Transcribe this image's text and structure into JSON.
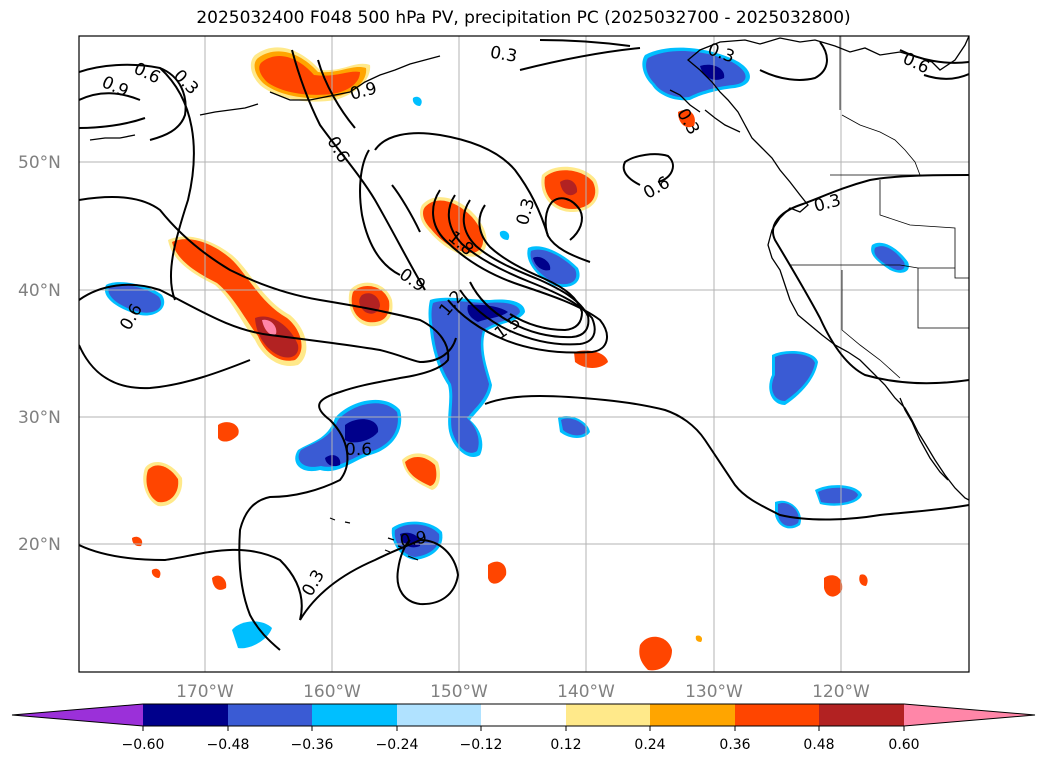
{
  "title": "2025032400 F048 500 hPa PV, precipitation PC (2025032700 - 2025032800)",
  "map": {
    "lat_labels": [
      "50°N",
      "40°N",
      "30°N",
      "20°N"
    ],
    "lon_labels": [
      "170°W",
      "160°W",
      "150°W",
      "140°W",
      "130°W",
      "120°W"
    ],
    "contour_labels": [
      "0.9",
      "0.6",
      "0.3",
      "0.3",
      "0.9",
      "0.6",
      "0.3",
      "0.6",
      "0.3",
      "0.6",
      "0.3",
      "0.6",
      "0.9",
      "1.2",
      "1.5",
      "1.8",
      "0.3",
      "0.9",
      "0.3",
      "0.6"
    ]
  },
  "colorbar": {
    "ticks": [
      "−0.60",
      "−0.48",
      "−0.36",
      "−0.24",
      "−0.12",
      "0.12",
      "0.24",
      "0.36",
      "0.48",
      "0.60"
    ],
    "colors": [
      "#9b30d9",
      "#00008b",
      "#3a5bd4",
      "#00bfff",
      "#b0e2ff",
      "#ffffff",
      "#ffe98a",
      "#ffa500",
      "#ff4500",
      "#b22222",
      "#ff86a8",
      "#ff86a8"
    ],
    "extend": "both"
  }
}
